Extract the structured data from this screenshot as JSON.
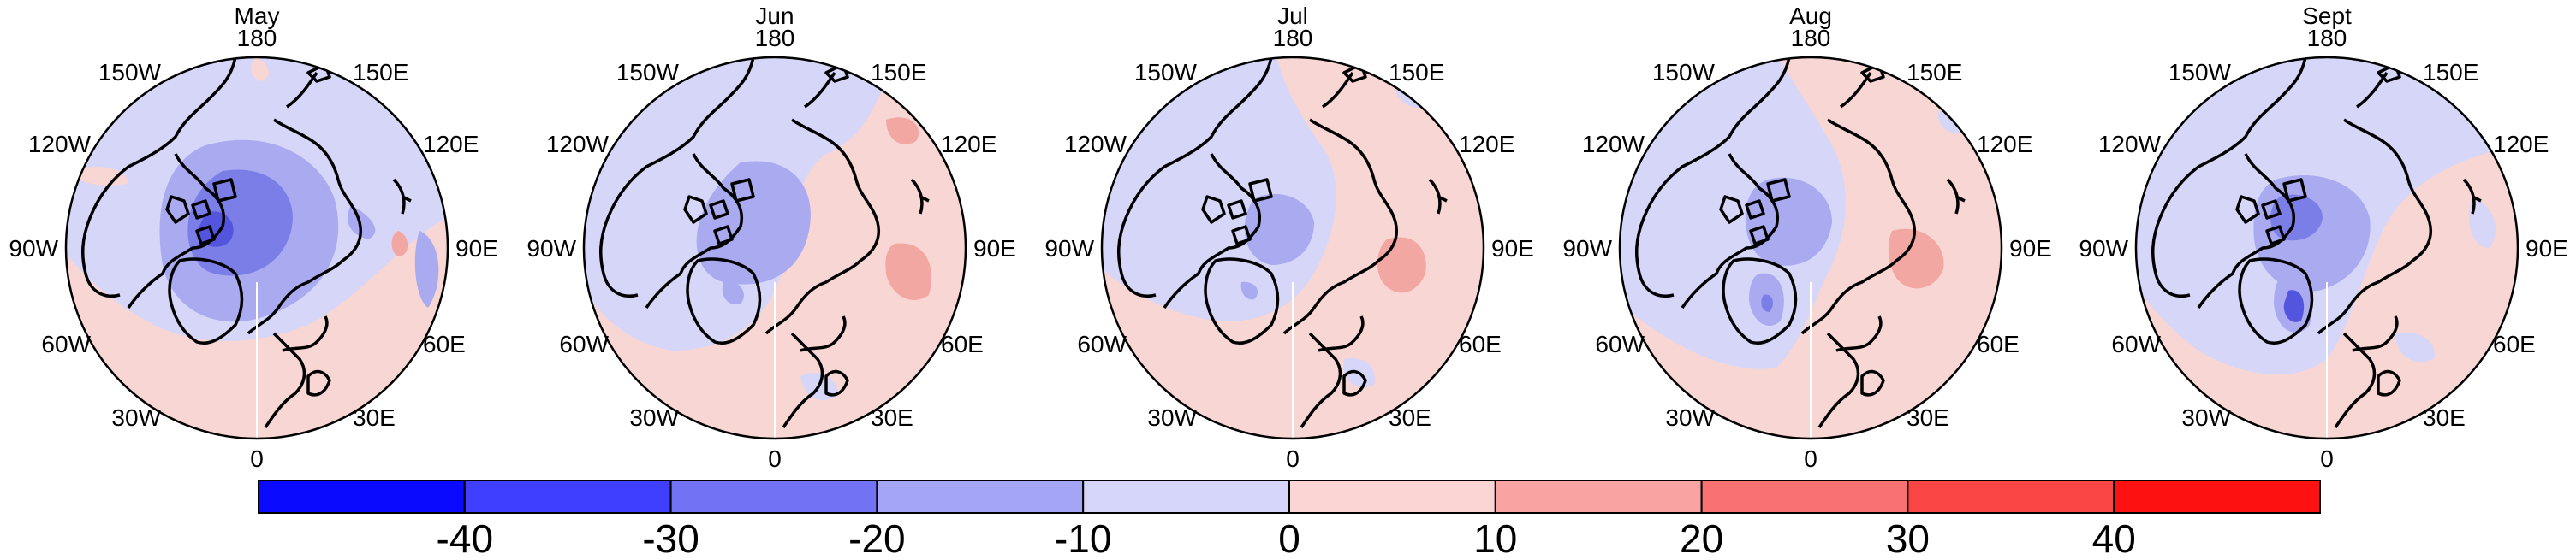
{
  "panels": [
    {
      "title": "May"
    },
    {
      "title": "Jun"
    },
    {
      "title": "Jul"
    },
    {
      "title": "Aug"
    },
    {
      "title": "Sept"
    }
  ],
  "longitude_labels": [
    "180",
    "150E",
    "120E",
    "90E",
    "60E",
    "30E",
    "0",
    "30W",
    "60W",
    "90W",
    "120W",
    "150W"
  ],
  "colorbar": {
    "tick_labels": [
      "-40",
      "-30",
      "-20",
      "-10",
      "0",
      "10",
      "20",
      "30",
      "40"
    ],
    "colors": [
      "#0a0aff",
      "#3f3fff",
      "#7272f5",
      "#a5a5f5",
      "#d6d6fa",
      "#fbd4d4",
      "#f9a3a3",
      "#f97272",
      "#fa4545",
      "#fe1111"
    ]
  },
  "map_palette": {
    "light_blue": "#d5d6f8",
    "mid_blue": "#a9aaf0",
    "dark_blue": "#7c7ee8",
    "deep_blue": "#5455de",
    "light_red": "#f8d6d4",
    "mid_red": "#f3a7a3",
    "coastline": "#000000"
  }
}
